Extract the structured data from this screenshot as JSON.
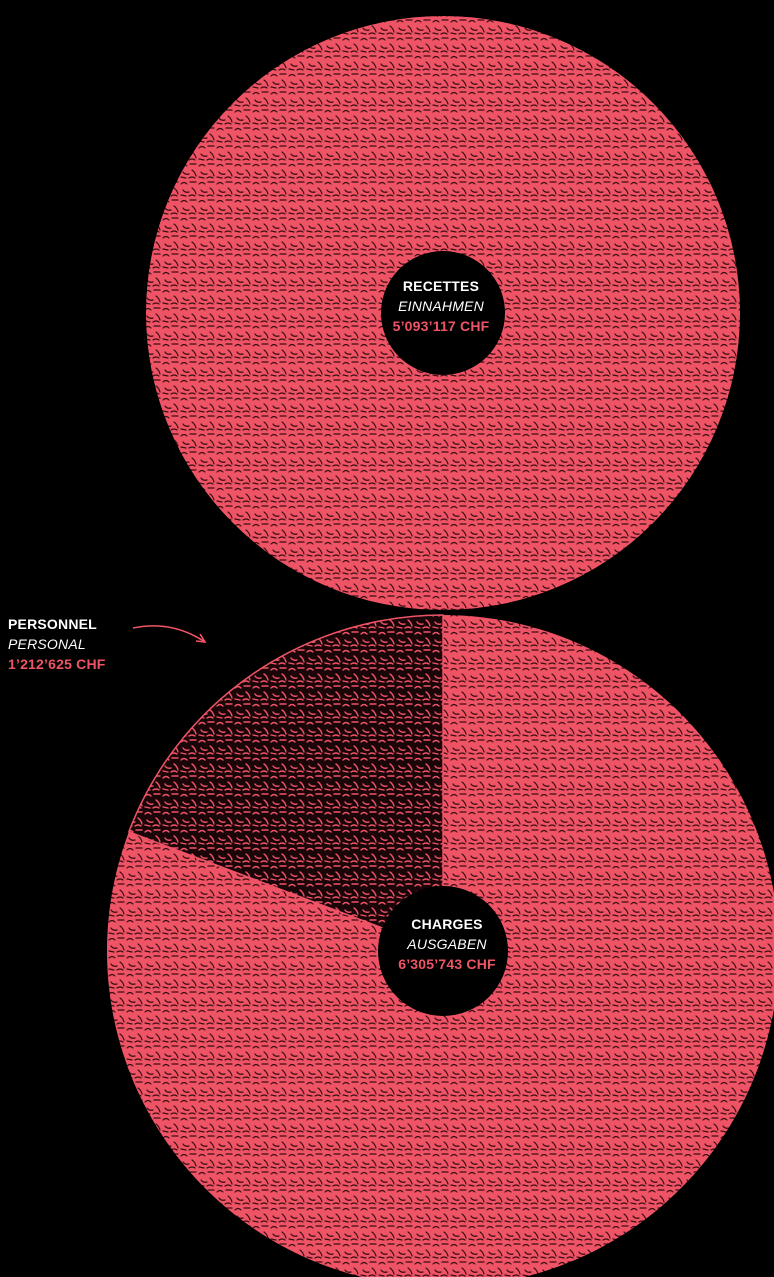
{
  "colors": {
    "background": "#000000",
    "slice": "#ef5466",
    "highlight_slice": "#21090d",
    "label_main": "#ffffff",
    "label_value": "#ef5466"
  },
  "chart_data": [
    {
      "type": "pie",
      "variant": "donut",
      "segments": [
        {
          "value": 5093117
        }
      ],
      "center_label": {
        "fr": "RECETTES",
        "de": "EINNAHMEN",
        "value": "5’093’117 CHF"
      }
    },
    {
      "type": "pie",
      "variant": "donut",
      "total": 6305743,
      "segments": [
        {
          "label_fr": "PERSONNEL",
          "label_de": "PERSONAL",
          "value": 1212625,
          "value_text": "1’212’625 CHF",
          "highlighted": true
        },
        {
          "value": 5093118,
          "highlighted": false
        }
      ],
      "center_label": {
        "fr": "CHARGES",
        "de": "AUSGABEN",
        "value": "6’305’743 CHF"
      }
    }
  ]
}
